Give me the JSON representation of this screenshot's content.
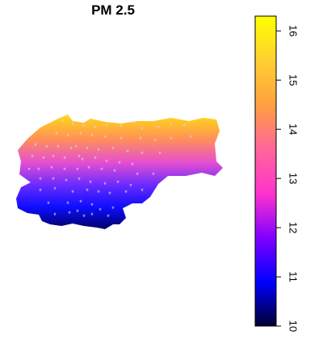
{
  "title": "PM 2.5",
  "colorbar": {
    "min": 10,
    "max": 16.3,
    "ticks": [
      10,
      11,
      12,
      13,
      14,
      15,
      16
    ],
    "colormap": [
      "#000033",
      "#0000ff",
      "#8000ff",
      "#ff33cc",
      "#ff6699",
      "#ffa040",
      "#ffd030",
      "#ffff00"
    ]
  },
  "region": {
    "fill_gradient": [
      "#ffd21a",
      "#ff8f5a",
      "#e64fcf",
      "#6b2bff",
      "#0d0dff",
      "#000060"
    ],
    "station_marker": "*",
    "station_count": 80
  }
}
